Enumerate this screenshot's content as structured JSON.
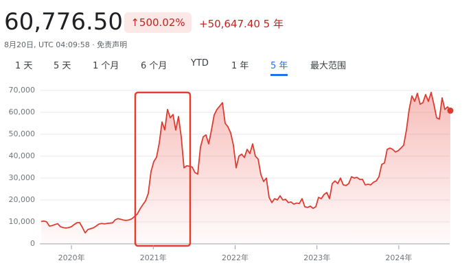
{
  "header": {
    "price": "60,776.50",
    "change_percent": "↑500.02%",
    "change": "+50,647.40 5 年",
    "subtitle": "8月20日, UTC 04:09:58 · 免责声明"
  },
  "tabs": {
    "items": [
      "1 天",
      "5 天",
      "1 个月",
      "6 个月",
      "YTD",
      "1 年",
      "5 年",
      "最大范围"
    ],
    "selected": 6
  },
  "chart_data": {
    "type": "line",
    "color": "#dd3b30",
    "grid": true,
    "xlim": [
      2019.63,
      2024.63
    ],
    "xticks": [
      {
        "value": 2020,
        "label": "2020年"
      },
      {
        "value": 2021,
        "label": "2021年"
      },
      {
        "value": 2022,
        "label": "2022年"
      },
      {
        "value": 2023,
        "label": "2023年"
      },
      {
        "value": 2024,
        "label": "2024年"
      }
    ],
    "ylim": [
      0,
      70000
    ],
    "yticks": [
      0,
      {
        "value": 10000,
        "label": "10,000"
      },
      {
        "value": 20000,
        "label": "20,000"
      },
      {
        "value": 30000,
        "label": "30,000"
      },
      {
        "value": 40000,
        "label": "40,000"
      },
      {
        "value": 50000,
        "label": "50,000"
      },
      {
        "value": 60000,
        "label": "60,000"
      },
      {
        "value": 70000,
        "label": "70,000"
      }
    ],
    "values": [
      10200,
      10400,
      10000,
      8100,
      8300,
      8800,
      9200,
      7800,
      7400,
      7200,
      7400,
      7800,
      8800,
      9600,
      9700,
      7500,
      5000,
      6500,
      6900,
      7300,
      8100,
      9000,
      9300,
      9100,
      9300,
      9400,
      9600,
      11000,
      11500,
      11200,
      10800,
      10700,
      10900,
      11400,
      12500,
      13600,
      15900,
      17800,
      19600,
      23000,
      33000,
      37500,
      39500,
      46000,
      55600,
      52000,
      61300,
      57500,
      59000,
      51900,
      58100,
      48800,
      34700,
      35600,
      35400,
      35000,
      32500,
      31800,
      44100,
      48800,
      49700,
      45600,
      51900,
      58800,
      61300,
      62800,
      64400,
      55000,
      53400,
      50600,
      45000,
      34700,
      40000,
      40900,
      39400,
      43100,
      41200,
      45600,
      40000,
      38700,
      31600,
      28400,
      30000,
      21200,
      18800,
      20600,
      20000,
      21900,
      20000,
      20300,
      18800,
      19100,
      18100,
      18600,
      18400,
      20600,
      16900,
      16600,
      17200,
      16200,
      16900,
      21200,
      20600,
      22500,
      23400,
      20600,
      27500,
      28700,
      27500,
      30000,
      26900,
      26600,
      27500,
      30600,
      30000,
      30300,
      29400,
      29400,
      26900,
      27200,
      26900,
      28100,
      28700,
      30600,
      36200,
      36900,
      43100,
      43700,
      43100,
      41900,
      42500,
      43700,
      45000,
      51900,
      61300,
      67500,
      65000,
      68700,
      63700,
      64400,
      68100,
      65000,
      69100,
      63700,
      57500,
      56900,
      66600,
      61300,
      62500,
      60776.5
    ]
  }
}
